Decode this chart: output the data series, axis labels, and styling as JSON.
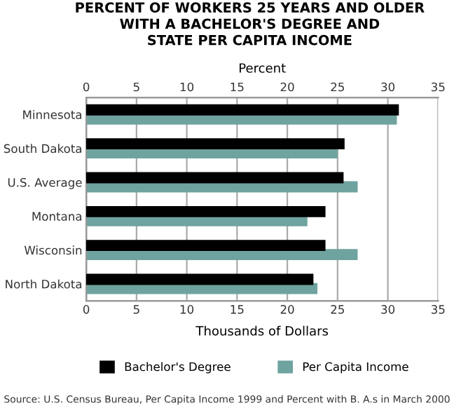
{
  "chart_data": {
    "type": "bar",
    "orientation": "horizontal",
    "title": "PERCENT OF WORKERS 25 YEARS AND OLDER\nWITH A BACHELOR'S DEGREE AND\nSTATE PER CAPITA INCOME",
    "x2label": "Percent",
    "xlabel": "Thousands of Dollars",
    "categories": [
      "Minnesota",
      "South Dakota",
      "U.S. Average",
      "Montana",
      "Wisconsin",
      "North Dakota"
    ],
    "series": [
      {
        "name": "Bachelor's Degree",
        "color": "#000000",
        "axis": "x2",
        "values": [
          31.0,
          25.6,
          25.5,
          23.7,
          23.7,
          22.5
        ]
      },
      {
        "name": "Per Capita Income",
        "color": "#6fa3a0",
        "values": [
          30.8,
          24.9,
          26.9,
          21.9,
          26.9,
          22.9
        ]
      }
    ],
    "xlim": [
      0,
      35
    ],
    "xticks": [
      0,
      5,
      10,
      15,
      20,
      25,
      30,
      35
    ],
    "x2lim": [
      0,
      35
    ],
    "x2ticks": [
      0,
      5,
      10,
      15,
      20,
      25,
      30,
      35
    ],
    "grid": "x",
    "legend": "bottom",
    "annotations": [
      "Source: U.S. Census Bureau, Per Capita Income 1999 and Percent with B. A.s in March 2000"
    ]
  }
}
